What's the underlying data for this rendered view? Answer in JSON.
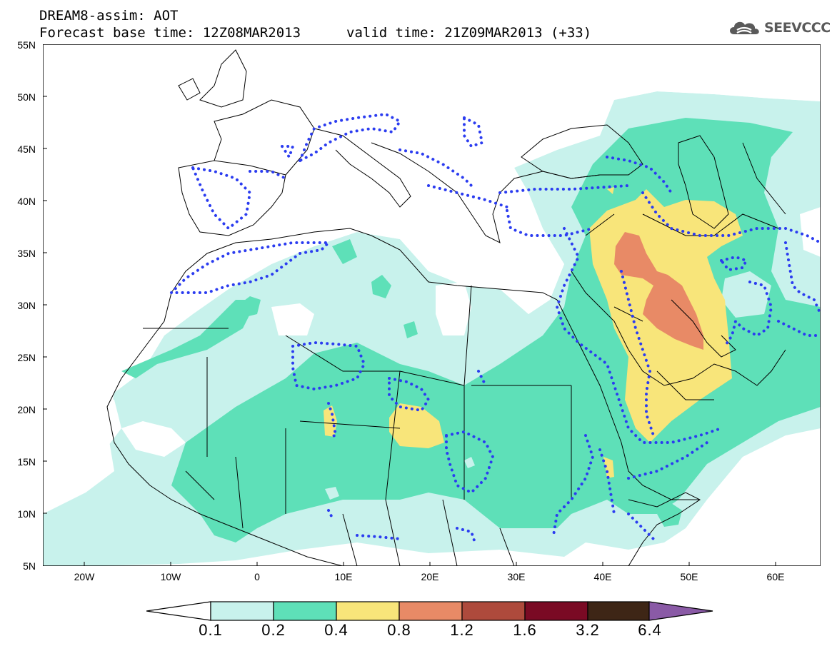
{
  "header": {
    "line1": "DREAM8-assim: AOT",
    "line2": "Forecast base time: 12Z08MAR2013",
    "line3": "valid time: 21Z09MAR2013 (+33)"
  },
  "logo": {
    "text": "SEEVCCC",
    "icon": "cloud-icon"
  },
  "axes": {
    "lat_labels": [
      "55N",
      "50N",
      "45N",
      "40N",
      "35N",
      "30N",
      "25N",
      "20N",
      "15N",
      "10N",
      "5N"
    ],
    "lon_labels": [
      "20W",
      "10W",
      "0",
      "10E",
      "20E",
      "30E",
      "40E",
      "50E",
      "60E"
    ]
  },
  "colorbar": {
    "labels": [
      "0.1",
      "0.2",
      "0.4",
      "0.8",
      "1.2",
      "1.6",
      "3.2",
      "6.4"
    ],
    "colors": [
      "#c8f2ec",
      "#5ee0b8",
      "#f8e57a",
      "#e88a66",
      "#ae4a3c",
      "#7a0a24",
      "#3e2616",
      "#8a5aa6"
    ]
  },
  "chart_data": {
    "type": "heatmap",
    "title": "DREAM8-assim: AOT",
    "variable": "AOT",
    "lat_range": [
      5,
      55
    ],
    "lon_range": [
      -25,
      65
    ],
    "levels": [
      0.1,
      0.2,
      0.4,
      0.8,
      1.2,
      1.6,
      3.2,
      6.4
    ],
    "colors": {
      "bg": "#ffffff",
      "lvl1": "#c8f2ec",
      "lvl2": "#5ee0b8",
      "lvl3": "#f8e57a",
      "lvl4": "#e88a66",
      "dots": "#2b3cf0",
      "borders": "#000000"
    }
  }
}
